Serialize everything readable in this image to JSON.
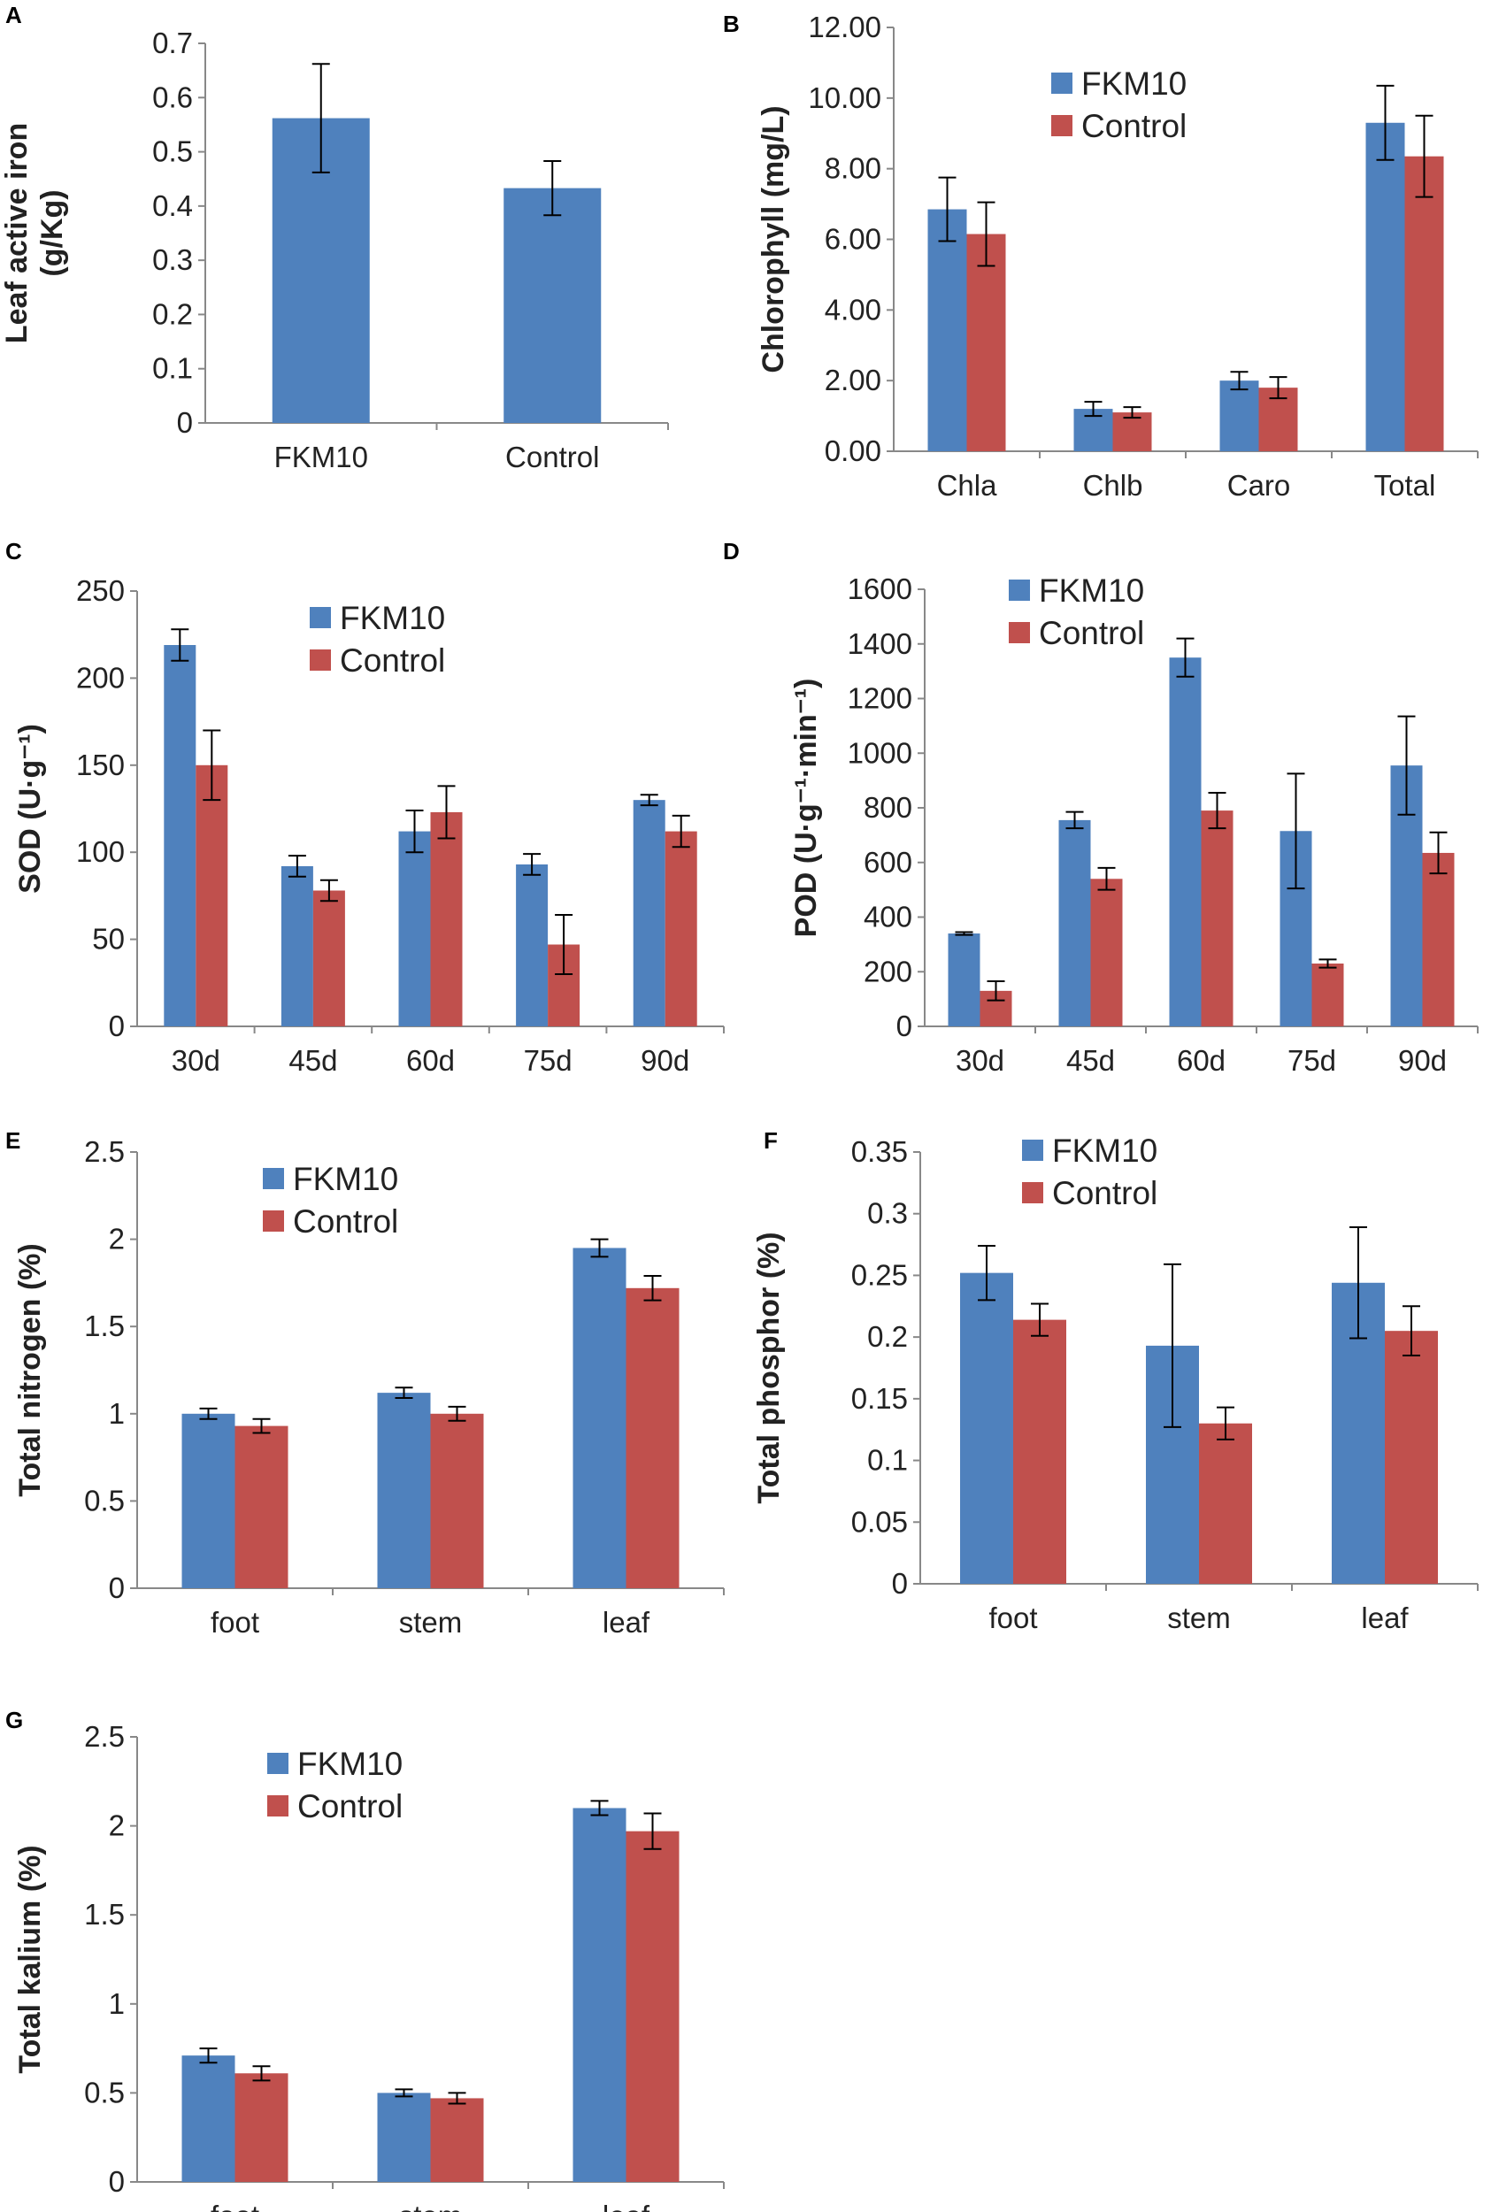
{
  "colors": {
    "fkm10": "#4f81bd",
    "control": "#c0504d",
    "axis": "#888888",
    "error": "#000000"
  },
  "chart_data": [
    {
      "panel": "A",
      "type": "bar",
      "ylabel_lines": [
        "Leaf active iron",
        "(g/Kg)"
      ],
      "categories": [
        "FKM10",
        "Control"
      ],
      "ylim": [
        0,
        0.7
      ],
      "yticks": [
        "0",
        "0.1",
        "0.2",
        "0.3",
        "0.4",
        "0.5",
        "0.6",
        "0.7"
      ],
      "legend": null,
      "series": [
        {
          "name": "FKM10",
          "values": [
            0.562,
            0.433
          ],
          "errors": [
            0.1,
            0.05
          ]
        }
      ]
    },
    {
      "panel": "B",
      "type": "bar",
      "ylabel_lines": [
        "Chlorophyll (mg/L)"
      ],
      "categories": [
        "Chla",
        "Chlb",
        "Caro",
        "Total"
      ],
      "ylim": [
        0,
        12
      ],
      "yticks": [
        "0.00",
        "2.00",
        "4.00",
        "6.00",
        "8.00",
        "10.00",
        "12.00"
      ],
      "legend": "top-center",
      "series": [
        {
          "name": "FKM10",
          "values": [
            6.85,
            1.2,
            2.0,
            9.3
          ],
          "errors": [
            0.9,
            0.2,
            0.25,
            1.05
          ]
        },
        {
          "name": "Control",
          "values": [
            6.15,
            1.1,
            1.8,
            8.35
          ],
          "errors": [
            0.9,
            0.15,
            0.3,
            1.15
          ]
        }
      ]
    },
    {
      "panel": "C",
      "type": "bar",
      "ylabel_lines": [
        "SOD (U·g⁻¹)"
      ],
      "categories": [
        "30d",
        "45d",
        "60d",
        "75d",
        "90d"
      ],
      "ylim": [
        0,
        250
      ],
      "yticks": [
        "0",
        "50",
        "100",
        "150",
        "200",
        "250"
      ],
      "legend": "top-center",
      "series": [
        {
          "name": "FKM10",
          "values": [
            219,
            92,
            112,
            93,
            130
          ],
          "errors": [
            9,
            6,
            12,
            6,
            3
          ]
        },
        {
          "name": "Control",
          "values": [
            150,
            78,
            123,
            47,
            112
          ],
          "errors": [
            20,
            6,
            15,
            17,
            9
          ]
        }
      ]
    },
    {
      "panel": "D",
      "type": "bar",
      "ylabel_lines": [
        "POD (U·g⁻¹·min⁻¹)"
      ],
      "categories": [
        "30d",
        "45d",
        "60d",
        "75d",
        "90d"
      ],
      "ylim": [
        0,
        1600
      ],
      "yticks": [
        "0",
        "200",
        "400",
        "600",
        "800",
        "1000",
        "1200",
        "1400",
        "1600"
      ],
      "legend": "top-center",
      "series": [
        {
          "name": "FKM10",
          "values": [
            340,
            755,
            1350,
            715,
            955
          ],
          "errors": [
            5,
            30,
            70,
            210,
            180
          ]
        },
        {
          "name": "Control",
          "values": [
            130,
            540,
            790,
            230,
            635
          ],
          "errors": [
            35,
            40,
            65,
            15,
            75
          ]
        }
      ]
    },
    {
      "panel": "E",
      "type": "bar",
      "ylabel_lines": [
        "Total nitrogen (%)"
      ],
      "categories": [
        "foot",
        "stem",
        "leaf"
      ],
      "ylim": [
        0,
        2.5
      ],
      "yticks": [
        "0",
        "0.5",
        "1",
        "1.5",
        "2",
        "2.5"
      ],
      "legend": "top-center",
      "series": [
        {
          "name": "FKM10",
          "values": [
            1.0,
            1.12,
            1.95
          ],
          "errors": [
            0.03,
            0.03,
            0.05
          ]
        },
        {
          "name": "Control",
          "values": [
            0.93,
            1.0,
            1.72
          ],
          "errors": [
            0.04,
            0.04,
            0.07
          ]
        }
      ]
    },
    {
      "panel": "F",
      "type": "bar",
      "ylabel_lines": [
        "Total phosphor (%)"
      ],
      "categories": [
        "foot",
        "stem",
        "leaf"
      ],
      "ylim": [
        0,
        0.35
      ],
      "yticks": [
        "0",
        "0.05",
        "0.1",
        "0.15",
        "0.2",
        "0.25",
        "0.3",
        "0.35"
      ],
      "legend": "top-center",
      "series": [
        {
          "name": "FKM10",
          "values": [
            0.252,
            0.193,
            0.244
          ],
          "errors": [
            0.022,
            0.066,
            0.045
          ]
        },
        {
          "name": "Control",
          "values": [
            0.214,
            0.13,
            0.205
          ],
          "errors": [
            0.013,
            0.013,
            0.02
          ]
        }
      ]
    },
    {
      "panel": "G",
      "type": "bar",
      "ylabel_lines": [
        "Total kalium (%)"
      ],
      "categories": [
        "foot",
        "stem",
        "leaf"
      ],
      "ylim": [
        0,
        2.5
      ],
      "yticks": [
        "0",
        "0.5",
        "1",
        "1.5",
        "2",
        "2.5"
      ],
      "legend": "top-center",
      "series": [
        {
          "name": "FKM10",
          "values": [
            0.71,
            0.5,
            2.1
          ],
          "errors": [
            0.04,
            0.02,
            0.04
          ]
        },
        {
          "name": "Control",
          "values": [
            0.61,
            0.47,
            1.97
          ],
          "errors": [
            0.04,
            0.03,
            0.1
          ]
        }
      ]
    }
  ]
}
